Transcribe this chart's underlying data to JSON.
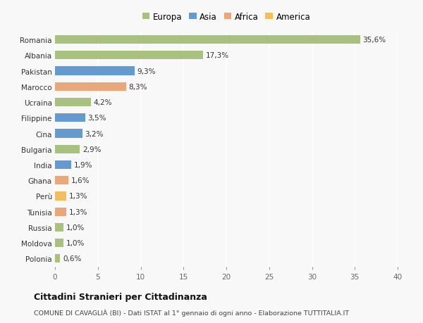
{
  "countries": [
    "Romania",
    "Albania",
    "Pakistan",
    "Marocco",
    "Ucraina",
    "Filippine",
    "Cina",
    "Bulgaria",
    "India",
    "Ghana",
    "Perù",
    "Tunisia",
    "Russia",
    "Moldova",
    "Polonia"
  ],
  "values": [
    35.6,
    17.3,
    9.3,
    8.3,
    4.2,
    3.5,
    3.2,
    2.9,
    1.9,
    1.6,
    1.3,
    1.3,
    1.0,
    1.0,
    0.6
  ],
  "labels": [
    "35,6%",
    "17,3%",
    "9,3%",
    "8,3%",
    "4,2%",
    "3,5%",
    "3,2%",
    "2,9%",
    "1,9%",
    "1,6%",
    "1,3%",
    "1,3%",
    "1,0%",
    "1,0%",
    "0,6%"
  ],
  "continents": [
    "Europa",
    "Europa",
    "Asia",
    "Africa",
    "Europa",
    "Asia",
    "Asia",
    "Europa",
    "Asia",
    "Africa",
    "America",
    "Africa",
    "Europa",
    "Europa",
    "Europa"
  ],
  "continent_colors": {
    "Europa": "#a8c080",
    "Asia": "#6699cc",
    "Africa": "#e8a87c",
    "America": "#f0c060"
  },
  "legend_order": [
    "Europa",
    "Asia",
    "Africa",
    "America"
  ],
  "title": "Cittadini Stranieri per Cittadinanza",
  "subtitle": "COMUNE DI CAVAGLIÀ (BI) - Dati ISTAT al 1° gennaio di ogni anno - Elaborazione TUTTITALIA.IT",
  "xlim": [
    0,
    40
  ],
  "xticks": [
    0,
    5,
    10,
    15,
    20,
    25,
    30,
    35,
    40
  ],
  "bg_color": "#f8f8f8",
  "plot_bg_color": "#f8f8f8",
  "grid_color": "#ffffff",
  "bar_height": 0.55,
  "label_fontsize": 7.5,
  "ytick_fontsize": 7.5,
  "xtick_fontsize": 7.5
}
